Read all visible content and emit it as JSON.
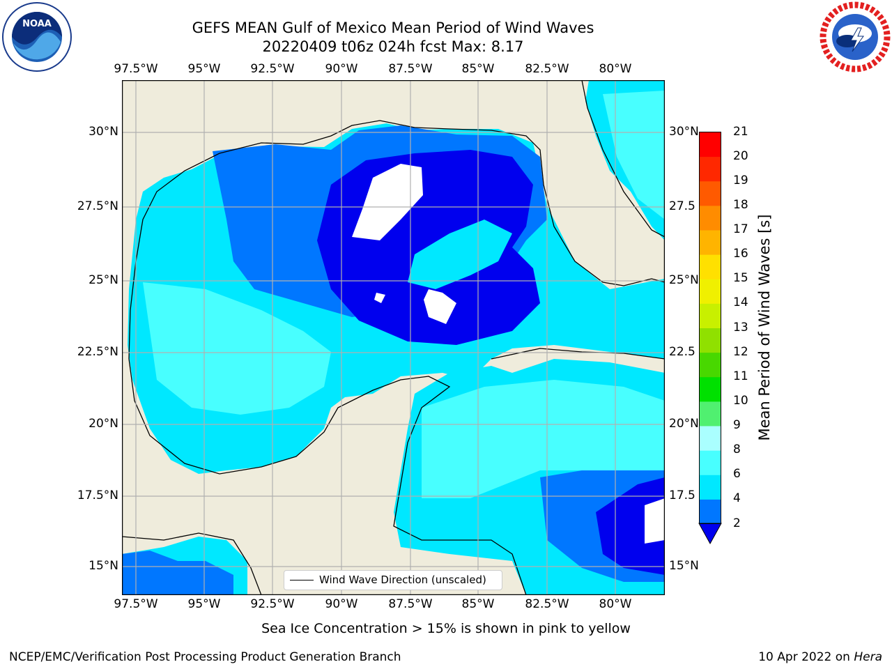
{
  "title": {
    "line1": "GEFS MEAN Gulf of Mexico Mean Period of Wind Waves",
    "line2": "20220409 t06z 024h fcst   Max: 8.17"
  },
  "logos": {
    "left": {
      "name": "noaa-logo",
      "text": "NOAA",
      "ring_text": "NATIONAL OCEANIC AND ATMOSPHERIC ADMINISTRATION · U.S. DEPARTMENT OF COMMERCE"
    },
    "right": {
      "name": "nws-logo",
      "ring_text": "NATIONAL WEATHER SERVICE"
    }
  },
  "map": {
    "lon_range": [
      -98,
      -78
    ],
    "lat_range": [
      14,
      32
    ],
    "lon_ticks": [
      "97.5°W",
      "95°W",
      "92.5°W",
      "90°W",
      "87.5°W",
      "85°W",
      "82.5°W",
      "80°W"
    ],
    "lat_ticks_left": [
      "30°N",
      "27.5°N",
      "25°N",
      "22.5°N",
      "20°N",
      "17.5°N",
      "15°N"
    ],
    "lat_ticks_right": [
      "30°N",
      "27.5",
      "25°N",
      "22.5",
      "20°N",
      "17.5",
      "15°N"
    ],
    "land_color": "#efecdc",
    "grid": true,
    "legend": {
      "label": "Wind Wave Direction (unscaled)",
      "placement": "bottom-center"
    }
  },
  "colorbar": {
    "title": "Mean Period of Wind Waves [s]",
    "labels": [
      "2",
      "4",
      "6",
      "8",
      "9",
      "10",
      "11",
      "12",
      "13",
      "14",
      "15",
      "16",
      "17",
      "18",
      "19",
      "20",
      "21"
    ],
    "colors": [
      "#0000ee",
      "#0077ff",
      "#00e8ff",
      "#48ffff",
      "#aaffff",
      "#50f070",
      "#00e000",
      "#48d800",
      "#90e000",
      "#c8f000",
      "#f0f000",
      "#ffe000",
      "#ffb400",
      "#ff8c00",
      "#ff5a00",
      "#ff2800",
      "#ff0000"
    ],
    "extend": "min"
  },
  "footer": {
    "ice_note": "Sea Ice Concentration > 15% is shown in pink to yellow",
    "branch": "NCEP/EMC/Verification Post Processing Product Generation Branch",
    "date": "10 Apr 2022 on",
    "host": "Hera"
  }
}
